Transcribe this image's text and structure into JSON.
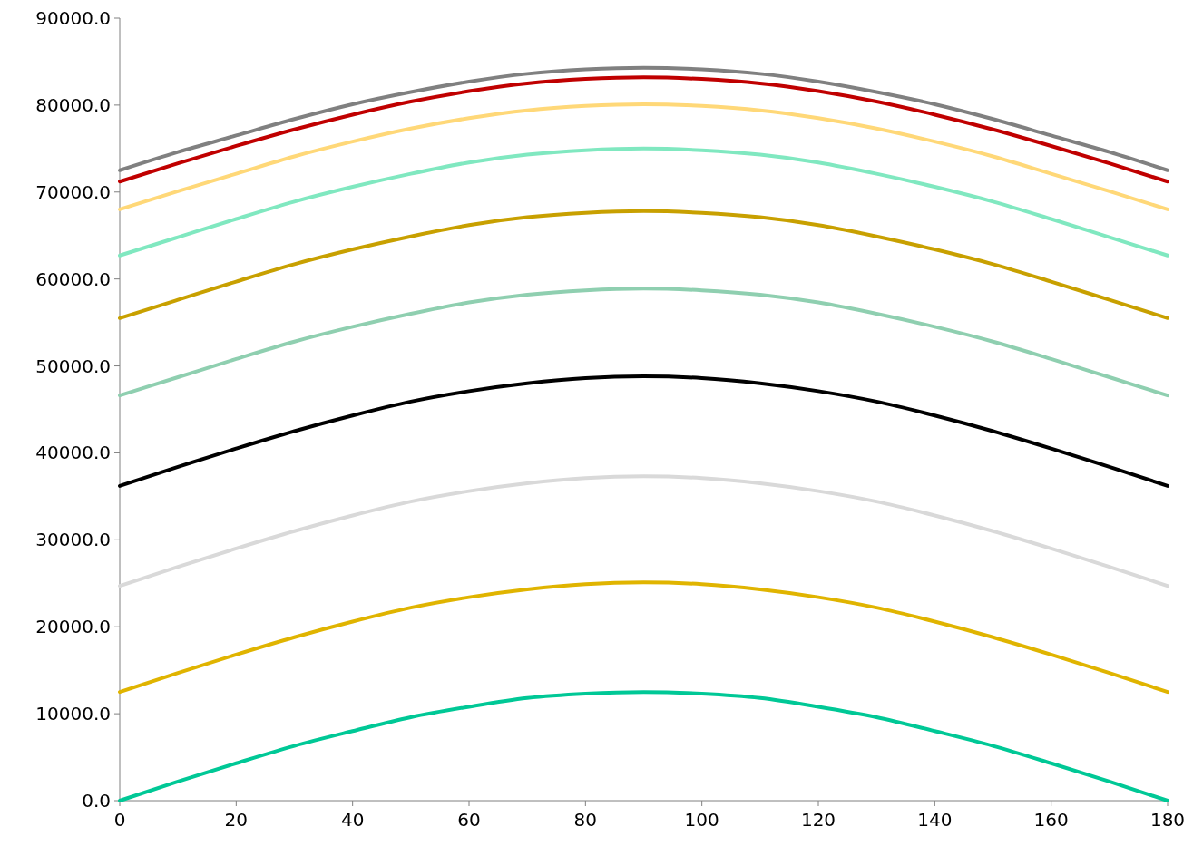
{
  "chart_data": {
    "type": "line",
    "x": [
      0,
      10,
      20,
      30,
      40,
      50,
      60,
      70,
      80,
      90,
      100,
      110,
      120,
      130,
      140,
      150,
      160,
      170,
      180
    ],
    "xlim": [
      0,
      180
    ],
    "xticks": [
      0,
      20,
      40,
      60,
      80,
      100,
      120,
      140,
      160,
      180
    ],
    "ylim": [
      0,
      90000
    ],
    "yticks": [
      {
        "value": 0,
        "label": "0.0"
      },
      {
        "value": 10000,
        "label": "10000.0"
      },
      {
        "value": 20000,
        "label": "20000.0"
      },
      {
        "value": 30000,
        "label": "30000.0"
      },
      {
        "value": 40000,
        "label": "40000.0"
      },
      {
        "value": 50000,
        "label": "50000.0"
      },
      {
        "value": 60000,
        "label": "60000.0"
      },
      {
        "value": 70000,
        "label": "70000.0"
      },
      {
        "value": 80000,
        "label": "80000.0"
      },
      {
        "value": 90000,
        "label": "90000.0"
      }
    ],
    "grid": false,
    "marker": "none",
    "line_style": "solid",
    "series": [
      {
        "color": "#00c896",
        "values": [
          0,
          2200,
          4300,
          6300,
          8000,
          9600,
          10800,
          11800,
          12300,
          12500,
          12300,
          11800,
          10800,
          9600,
          8000,
          6300,
          4300,
          2200,
          0
        ]
      },
      {
        "color": "#e0b400",
        "values": [
          12500,
          14700,
          16800,
          18800,
          20600,
          22200,
          23400,
          24300,
          24900,
          25100,
          24900,
          24300,
          23400,
          22200,
          20600,
          18800,
          16800,
          14700,
          12500
        ]
      },
      {
        "color": "#d9d9d9",
        "values": [
          24700,
          26900,
          29000,
          31000,
          32800,
          34400,
          35600,
          36500,
          37100,
          37300,
          37100,
          36500,
          35600,
          34400,
          32800,
          31000,
          29000,
          26900,
          24700
        ]
      },
      {
        "color": "#000000",
        "values": [
          36200,
          38400,
          40500,
          42500,
          44300,
          45900,
          47100,
          48000,
          48600,
          48800,
          48600,
          48000,
          47100,
          45900,
          44300,
          42500,
          40500,
          38400,
          36200
        ]
      },
      {
        "color": "#8fcfb0",
        "values": [
          46600,
          48700,
          50800,
          52800,
          54500,
          56000,
          57300,
          58200,
          58700,
          58900,
          58700,
          58200,
          57300,
          56000,
          54500,
          52800,
          50800,
          48700,
          46600
        ]
      },
      {
        "color": "#c8a000",
        "values": [
          55500,
          57600,
          59700,
          61700,
          63400,
          64900,
          66200,
          67100,
          67600,
          67800,
          67600,
          67100,
          66200,
          64900,
          63400,
          61700,
          59700,
          57600,
          55500
        ]
      },
      {
        "color": "#80e8c0",
        "values": [
          62700,
          64800,
          66900,
          68900,
          70600,
          72100,
          73400,
          74300,
          74800,
          75000,
          74800,
          74300,
          73400,
          72100,
          70600,
          68900,
          66900,
          64800,
          62700
        ]
      },
      {
        "color": "#ffd878",
        "values": [
          68000,
          70100,
          72100,
          74100,
          75800,
          77300,
          78500,
          79400,
          79900,
          80100,
          79900,
          79400,
          78500,
          77300,
          75800,
          74100,
          72100,
          70100,
          68000
        ]
      },
      {
        "color": "#c00000",
        "values": [
          71200,
          73300,
          75300,
          77200,
          78900,
          80400,
          81600,
          82500,
          83000,
          83200,
          83000,
          82500,
          81600,
          80400,
          78900,
          77200,
          75300,
          73300,
          71200
        ]
      },
      {
        "color": "#808080",
        "values": [
          72500,
          74600,
          76500,
          78400,
          80100,
          81500,
          82700,
          83600,
          84100,
          84300,
          84100,
          83600,
          82700,
          81500,
          80100,
          78400,
          76500,
          74600,
          72500
        ]
      }
    ]
  }
}
